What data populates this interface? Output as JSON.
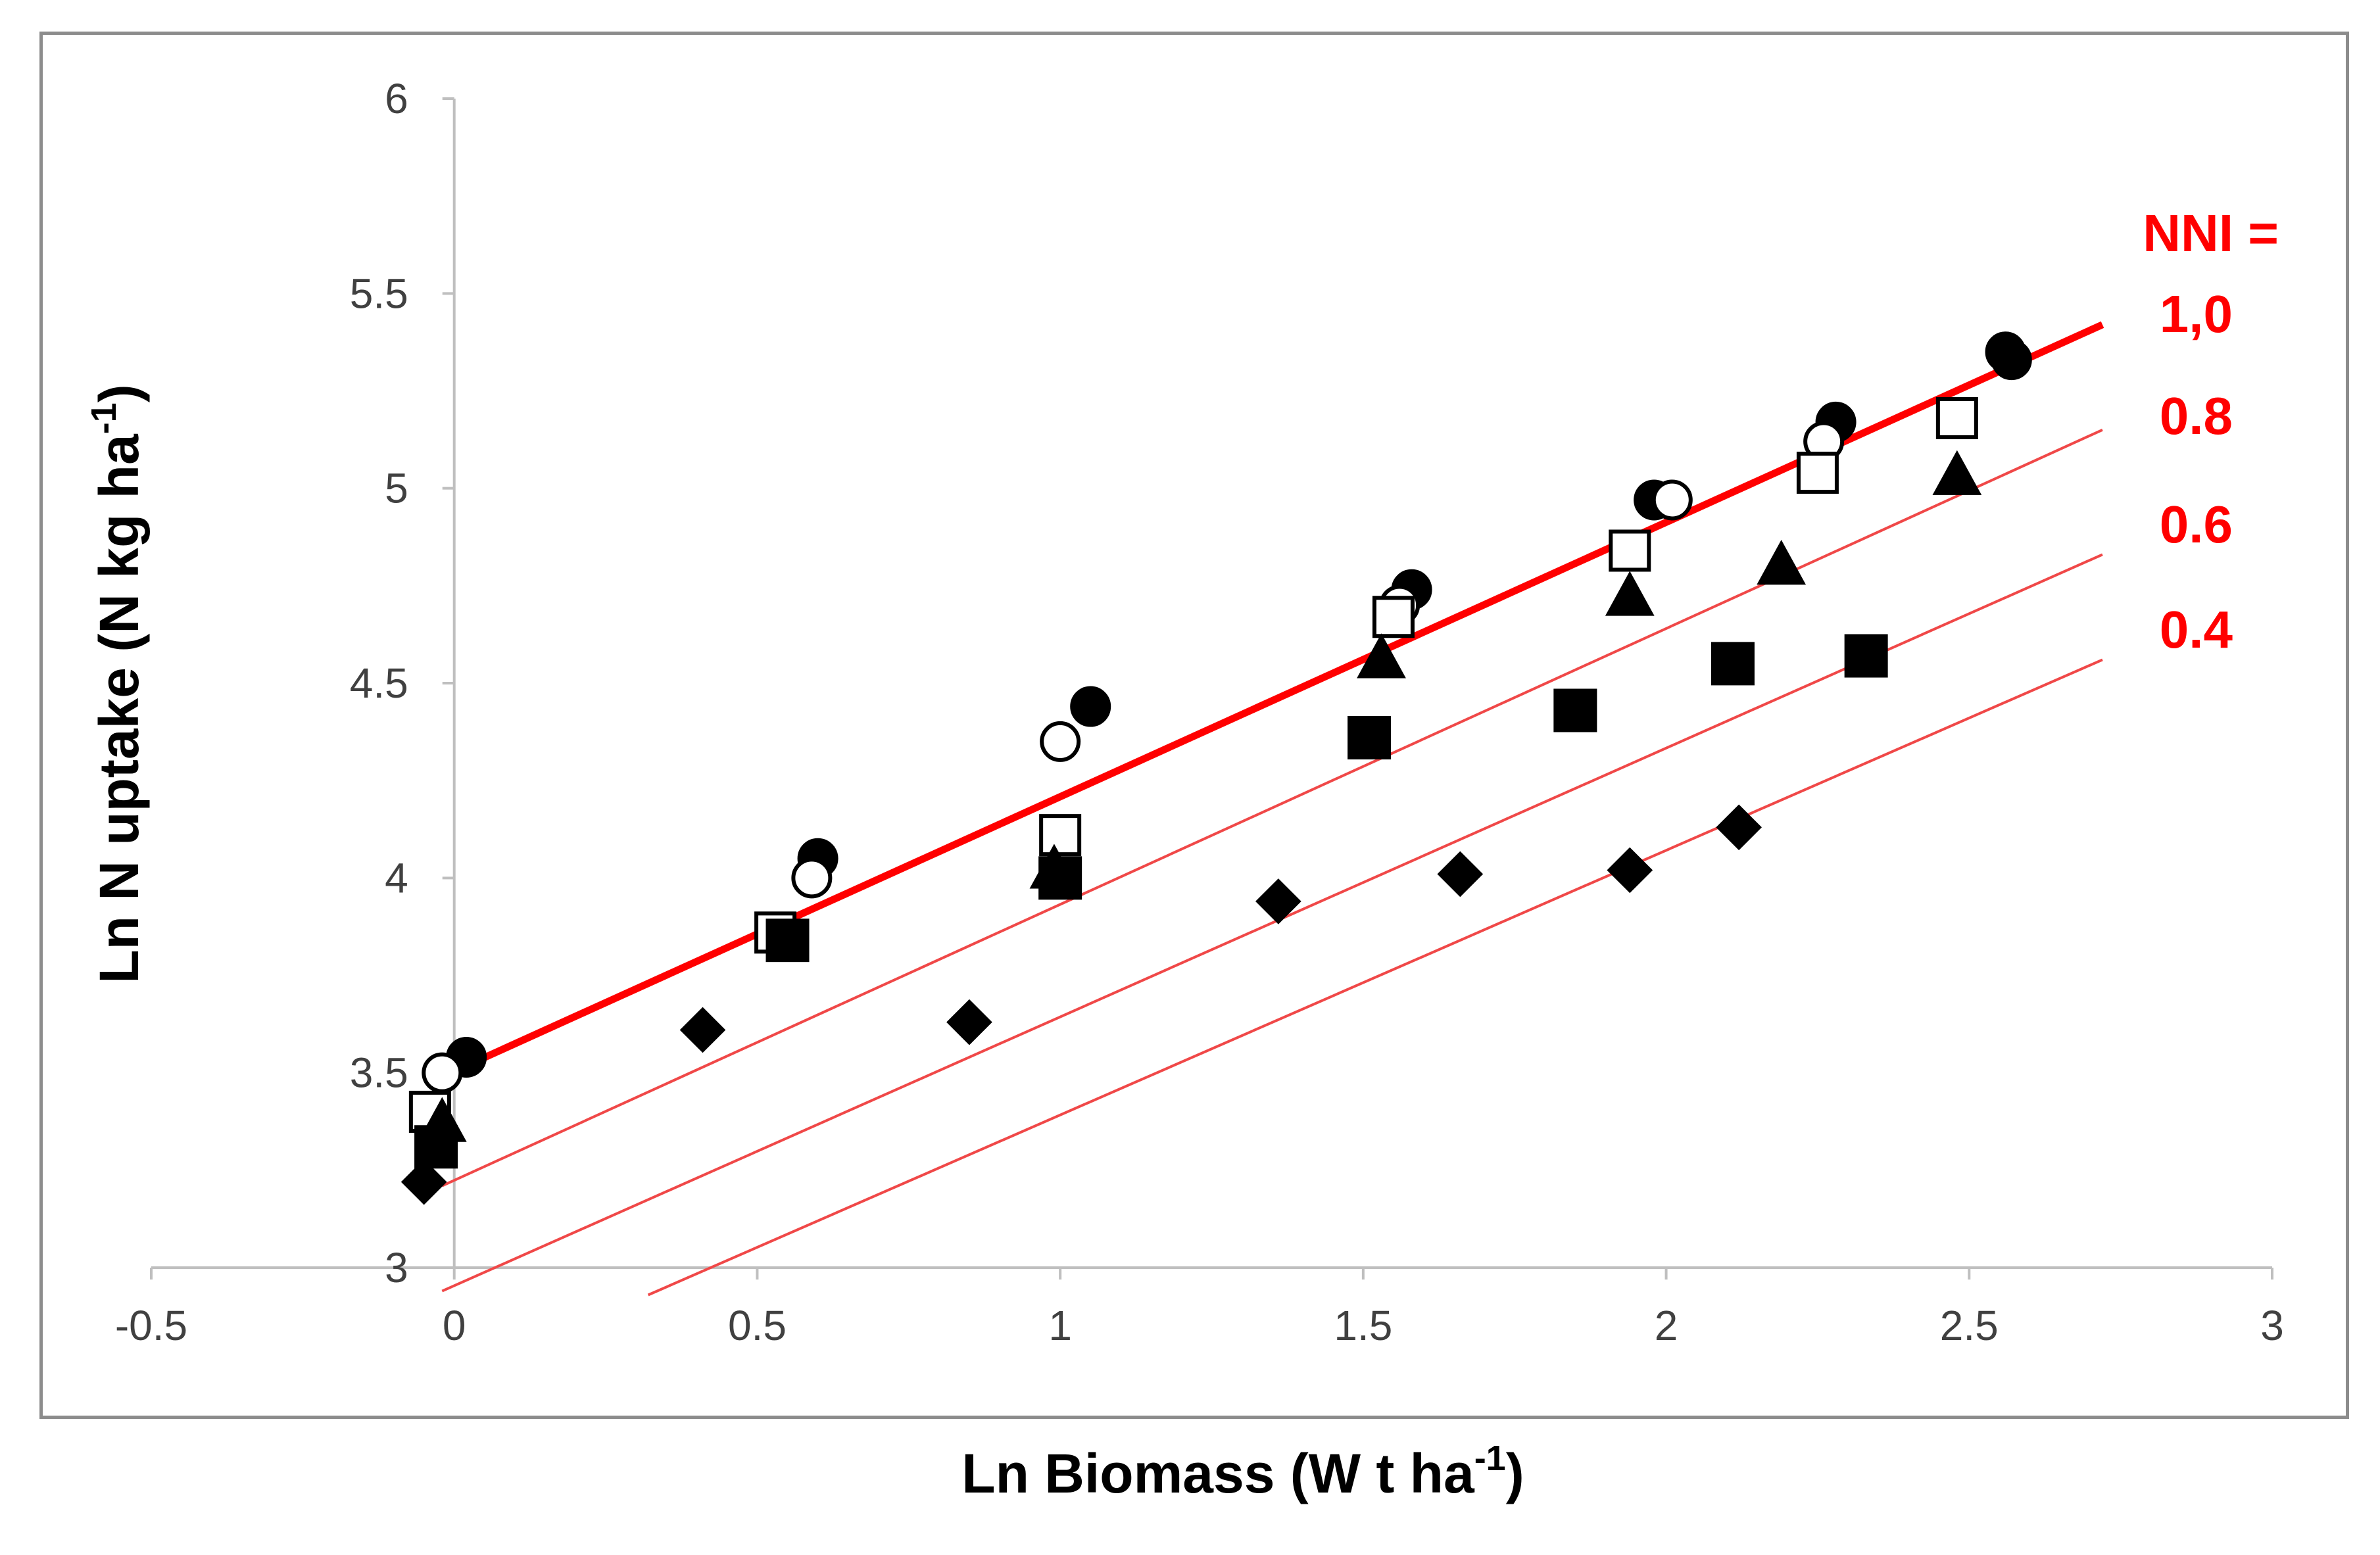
{
  "chart_data": {
    "type": "scatter",
    "xlabel": "Ln Biomass (W t ha",
    "xlabel_sup": "-1",
    "xlabel_end": ")",
    "ylabel": "Ln N uptake (N kg ha",
    "ylabel_sup": "-1",
    "ylabel_end": ")",
    "xlim": [
      -0.5,
      3
    ],
    "ylim": [
      3,
      6
    ],
    "xticks": [
      "-0.5",
      "0",
      "0.5",
      "1",
      "1.5",
      "2",
      "2.5",
      "3"
    ],
    "xtick_values": [
      -0.5,
      0,
      0.5,
      1,
      1.5,
      2,
      2.5,
      3
    ],
    "yticks": [
      "3",
      "3.5",
      "4",
      "4.5",
      "5",
      "5.5",
      "6"
    ],
    "ytick_values": [
      3,
      3.5,
      4,
      4.5,
      5,
      5.5,
      6
    ],
    "grid": false,
    "series": [
      {
        "name": "filled-circle",
        "marker": "circle",
        "filled": true,
        "x": [
          0.02,
          0.6,
          1.05,
          1.58,
          1.98,
          2.28,
          2.56,
          2.57
        ],
        "y": [
          3.54,
          4.05,
          4.44,
          4.74,
          4.97,
          5.17,
          5.35,
          5.33
        ]
      },
      {
        "name": "open-circle",
        "marker": "circle",
        "filled": false,
        "x": [
          -0.02,
          0.59,
          1.0,
          1.56,
          2.01,
          2.26
        ],
        "y": [
          3.5,
          4.0,
          4.35,
          4.7,
          4.97,
          5.12
        ]
      },
      {
        "name": "open-square",
        "marker": "square",
        "filled": false,
        "x": [
          -0.04,
          0.53,
          1.0,
          1.55,
          1.94,
          2.25,
          2.48
        ],
        "y": [
          3.4,
          3.86,
          4.11,
          4.67,
          4.84,
          5.04,
          5.18
        ]
      },
      {
        "name": "filled-triangle",
        "marker": "triangle",
        "filled": true,
        "x": [
          -0.02,
          0.99,
          1.53,
          1.94,
          2.19,
          2.48
        ],
        "y": [
          3.37,
          4.02,
          4.56,
          4.72,
          4.8,
          5.03
        ]
      },
      {
        "name": "filled-square",
        "marker": "square",
        "filled": true,
        "x": [
          -0.03,
          0.55,
          1.0,
          1.51,
          1.85,
          2.11,
          2.33
        ],
        "y": [
          3.31,
          3.84,
          4.0,
          4.36,
          4.43,
          4.55,
          4.57
        ]
      },
      {
        "name": "filled-diamond",
        "marker": "diamond",
        "filled": true,
        "x": [
          -0.05,
          0.41,
          0.85,
          1.36,
          1.66,
          1.94,
          2.12
        ],
        "y": [
          3.22,
          3.61,
          3.63,
          3.94,
          4.01,
          4.02,
          4.13
        ]
      }
    ],
    "reference_lines": [
      {
        "label": "1,0",
        "x": [
          -0.02,
          2.72
        ],
        "y": [
          3.49,
          5.42
        ],
        "bold": true
      },
      {
        "label": "0.8",
        "x": [
          -0.02,
          2.72
        ],
        "y": [
          3.21,
          5.15
        ],
        "bold": false
      },
      {
        "label": "0.6",
        "x": [
          -0.02,
          2.72
        ],
        "y": [
          2.94,
          4.83
        ],
        "bold": false
      },
      {
        "label": "0.4",
        "x": [
          0.32,
          2.72
        ],
        "y": [
          2.93,
          4.56
        ],
        "bold": false
      }
    ],
    "annotation_title": "NNI =",
    "annotation_color": "#ff0000",
    "line_color": "#ff0000",
    "thin_line_color": "#f04848",
    "marker_color": "#000000"
  }
}
